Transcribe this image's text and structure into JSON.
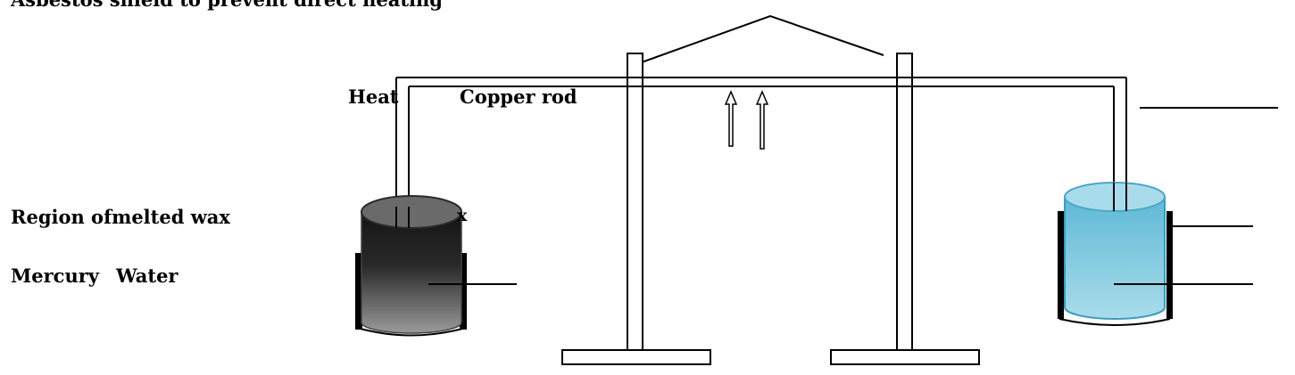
{
  "labels": {
    "title": "Asbestos shield to prevent direct heating",
    "heat": "Heat",
    "copper_rod": "Copper rod",
    "region": "Region ofmelted wax",
    "mercury": "Mercury",
    "water": "Water",
    "stray": "x"
  },
  "colors": {
    "mercury_dark": "#1e1e1e",
    "mercury_light": "#8c8c8c",
    "water_top": "#a8d8e8",
    "water_body": "#6ec3dc",
    "water_rim": "#4aa8c6"
  },
  "icons": [
    "upward-arrow-icon",
    "upward-arrow-icon"
  ]
}
